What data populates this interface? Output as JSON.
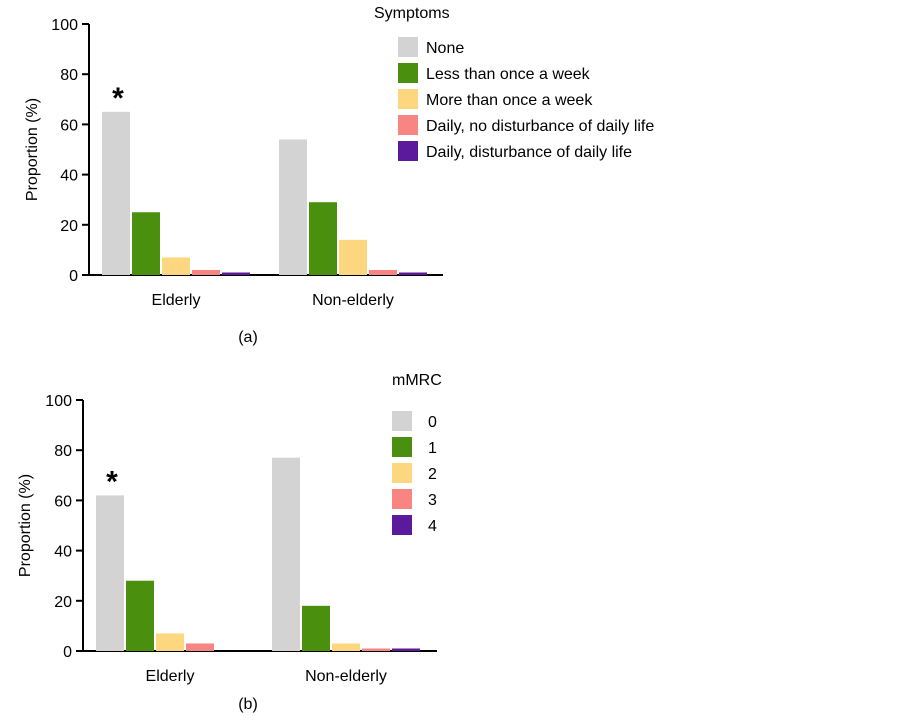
{
  "chart_data": [
    {
      "type": "bar",
      "categories": [
        "Elderly",
        "Non-elderly"
      ],
      "ylabel": "Proportion (%)",
      "xlabel": "",
      "ylim": [
        0,
        100
      ],
      "yticks": [
        0,
        20,
        40,
        60,
        80,
        100
      ],
      "legend_title": "Symptoms",
      "legend_position": "top-right",
      "panel_label": "(a)",
      "annotations": [
        {
          "text": "*",
          "category": "Elderly",
          "series": "None"
        }
      ],
      "series": [
        {
          "name": "None",
          "color": "#d3d3d3",
          "values": [
            65,
            54
          ]
        },
        {
          "name": "Less than once a week",
          "color": "#4a8f0e",
          "values": [
            25,
            29
          ]
        },
        {
          "name": "More than once a week",
          "color": "#fdd77f",
          "values": [
            7,
            14
          ]
        },
        {
          "name": "Daily, no disturbance of daily life",
          "color": "#f88581",
          "values": [
            2,
            2
          ]
        },
        {
          "name": "Daily, disturbance of daily life",
          "color": "#5b1a9c",
          "values": [
            1,
            1
          ]
        }
      ]
    },
    {
      "type": "bar",
      "categories": [
        "Elderly",
        "Non-elderly"
      ],
      "ylabel": "Proportion (%)",
      "xlabel": "",
      "ylim": [
        0,
        100
      ],
      "yticks": [
        0,
        20,
        40,
        60,
        80,
        100
      ],
      "legend_title": "mMRC",
      "legend_position": "top-right",
      "panel_label": "(b)",
      "annotations": [
        {
          "text": "*",
          "category": "Elderly",
          "series": "0"
        }
      ],
      "series": [
        {
          "name": "0",
          "color": "#d3d3d3",
          "values": [
            62,
            77
          ]
        },
        {
          "name": "1",
          "color": "#4a8f0e",
          "values": [
            28,
            18
          ]
        },
        {
          "name": "2",
          "color": "#fdd77f",
          "values": [
            7,
            3
          ]
        },
        {
          "name": "3",
          "color": "#f88581",
          "values": [
            3,
            1
          ]
        },
        {
          "name": "4",
          "color": "#5b1a9c",
          "values": [
            0,
            1
          ]
        }
      ]
    }
  ]
}
